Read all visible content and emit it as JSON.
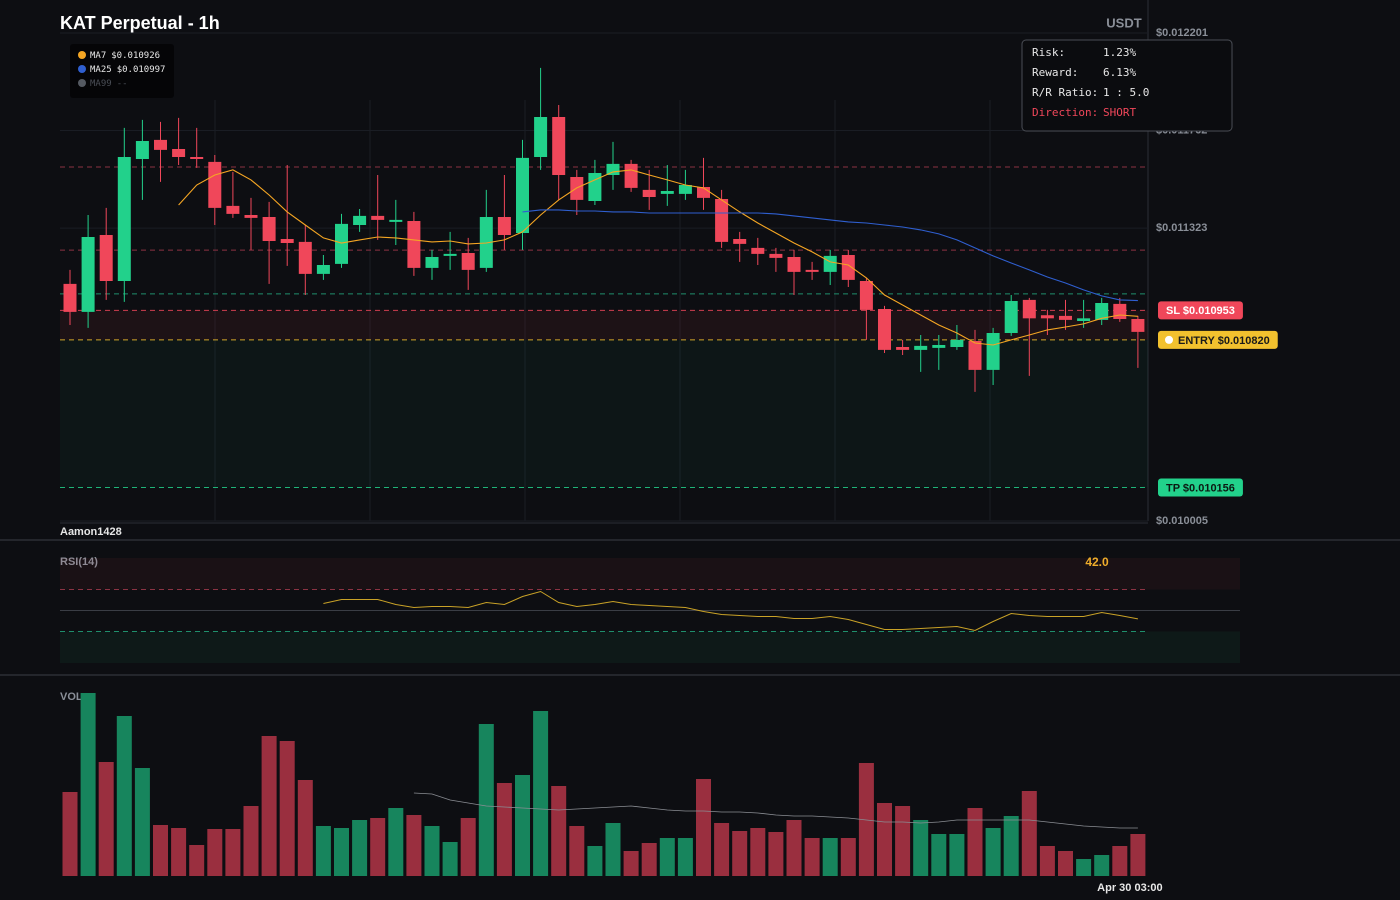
{
  "chart_data": {
    "type": "candlestick",
    "title": "KAT Perpetual - 1h",
    "currency": "USDT",
    "ylim": [
      0.010005,
      0.012201
    ],
    "yticks": [
      {
        "value": 0.012201,
        "label": "$0.012201"
      },
      {
        "value": 0.011762,
        "label": "$0.011762"
      },
      {
        "value": 0.011323,
        "label": "$0.011323"
      },
      {
        "value": 0.010005,
        "label": "$0.010005"
      }
    ],
    "grid": true,
    "up_color": "#22d18b",
    "down_color": "#f0475a",
    "candles": [
      [
        0.011072,
        0.011135,
        0.010887,
        0.010946
      ],
      [
        0.010946,
        0.011382,
        0.010874,
        0.011283
      ],
      [
        0.011292,
        0.011414,
        0.011,
        0.011085
      ],
      [
        0.011085,
        0.011774,
        0.010991,
        0.011643
      ],
      [
        0.011634,
        0.01181,
        0.01145,
        0.011715
      ],
      [
        0.01172,
        0.011801,
        0.011531,
        0.011675
      ],
      [
        0.011679,
        0.011819,
        0.011607,
        0.011643
      ],
      [
        0.011643,
        0.011774,
        0.011594,
        0.011634
      ],
      [
        0.011621,
        0.011652,
        0.011337,
        0.011414
      ],
      [
        0.011423,
        0.011576,
        0.011369,
        0.011387
      ],
      [
        0.011382,
        0.011459,
        0.011225,
        0.011369
      ],
      [
        0.011373,
        0.011441,
        0.011072,
        0.011265
      ],
      [
        0.011274,
        0.011607,
        0.011153,
        0.011256
      ],
      [
        0.011261,
        0.011337,
        0.011022,
        0.011117
      ],
      [
        0.011117,
        0.011202,
        0.01109,
        0.011157
      ],
      [
        0.011162,
        0.011387,
        0.011144,
        0.011342
      ],
      [
        0.011337,
        0.011409,
        0.011306,
        0.011378
      ],
      [
        0.011378,
        0.011562,
        0.01127,
        0.01136
      ],
      [
        0.011351,
        0.01145,
        0.011247,
        0.01136
      ],
      [
        0.011355,
        0.011396,
        0.011108,
        0.011144
      ],
      [
        0.011144,
        0.011225,
        0.01109,
        0.011193
      ],
      [
        0.011198,
        0.011306,
        0.011135,
        0.011207
      ],
      [
        0.011211,
        0.011279,
        0.011045,
        0.011135
      ],
      [
        0.011144,
        0.011495,
        0.011126,
        0.011373
      ],
      [
        0.011373,
        0.011562,
        0.011225,
        0.011292
      ],
      [
        0.011301,
        0.01172,
        0.011225,
        0.011639
      ],
      [
        0.011643,
        0.012044,
        0.011585,
        0.011823
      ],
      [
        0.011823,
        0.011877,
        0.01145,
        0.011562
      ],
      [
        0.011553,
        0.011585,
        0.011382,
        0.01145
      ],
      [
        0.011445,
        0.01163,
        0.011427,
        0.011571
      ],
      [
        0.011562,
        0.011711,
        0.011495,
        0.011612
      ],
      [
        0.011612,
        0.01163,
        0.011486,
        0.011504
      ],
      [
        0.011495,
        0.011585,
        0.011405,
        0.011463
      ],
      [
        0.011477,
        0.011607,
        0.011423,
        0.01149
      ],
      [
        0.011477,
        0.011585,
        0.01145,
        0.011517
      ],
      [
        0.011508,
        0.011639,
        0.011405,
        0.011459
      ],
      [
        0.011454,
        0.011495,
        0.011234,
        0.011261
      ],
      [
        0.011274,
        0.011306,
        0.011171,
        0.011252
      ],
      [
        0.011234,
        0.011279,
        0.011157,
        0.011207
      ],
      [
        0.011207,
        0.011234,
        0.011126,
        0.011189
      ],
      [
        0.011193,
        0.011225,
        0.011022,
        0.011126
      ],
      [
        0.011135,
        0.011171,
        0.01109,
        0.011126
      ],
      [
        0.011126,
        0.011225,
        0.011067,
        0.011198
      ],
      [
        0.011202,
        0.011225,
        0.011058,
        0.01109
      ],
      [
        0.011085,
        0.011099,
        0.01082,
        0.010955
      ],
      [
        0.010959,
        0.010973,
        0.010761,
        0.010775
      ],
      [
        0.010788,
        0.01082,
        0.010752,
        0.010775
      ],
      [
        0.010775,
        0.010842,
        0.010676,
        0.010793
      ],
      [
        0.010784,
        0.010842,
        0.010685,
        0.010797
      ],
      [
        0.010788,
        0.010887,
        0.010775,
        0.01082
      ],
      [
        0.010815,
        0.010865,
        0.010586,
        0.010685
      ],
      [
        0.010685,
        0.010874,
        0.010617,
        0.010851
      ],
      [
        0.010851,
        0.011022,
        0.010838,
        0.010995
      ],
      [
        0.011,
        0.011009,
        0.010658,
        0.010917
      ],
      [
        0.010931,
        0.010955,
        0.010842,
        0.010917
      ],
      [
        0.010928,
        0.011,
        0.010865,
        0.01091
      ],
      [
        0.010905,
        0.011,
        0.010874,
        0.010917
      ],
      [
        0.01091,
        0.011009,
        0.010887,
        0.010986
      ],
      [
        0.010982,
        0.011009,
        0.010901,
        0.010914
      ],
      [
        0.010914,
        0.010928,
        0.010694,
        0.010856
      ]
    ],
    "ma": [
      {
        "name": "MA7",
        "label": "$0.010926",
        "color": "#f5a623",
        "values": [
          null,
          null,
          null,
          null,
          null,
          null,
          0.011427,
          0.011517,
          0.011562,
          0.011585,
          0.01154,
          0.011472,
          0.011396,
          0.011337,
          0.011279,
          0.011256,
          0.01127,
          0.011283,
          0.011279,
          0.01127,
          0.011261,
          0.011265,
          0.011252,
          0.011256,
          0.01127,
          0.011306,
          0.011382,
          0.01145,
          0.011504,
          0.01154,
          0.011576,
          0.011585,
          0.011562,
          0.01154,
          0.011517,
          0.011504,
          0.01145,
          0.011396,
          0.011346,
          0.011301,
          0.011256,
          0.011216,
          0.011171,
          0.011157,
          0.011099,
          0.011022,
          0.010977,
          0.010932,
          0.010887,
          0.010851,
          0.010806,
          0.010797,
          0.01082,
          0.010842,
          0.010865,
          0.010878,
          0.010892,
          0.010917,
          0.010932,
          0.010926
        ]
      },
      {
        "name": "MA25",
        "label": "$0.010997",
        "color": "#2f5fd0",
        "values": [
          null,
          null,
          null,
          null,
          null,
          null,
          null,
          null,
          null,
          null,
          null,
          null,
          null,
          null,
          null,
          null,
          null,
          null,
          null,
          null,
          null,
          null,
          null,
          null,
          null,
          0.011396,
          0.011405,
          0.011405,
          0.0114,
          0.0114,
          0.011396,
          0.011396,
          0.011391,
          0.011391,
          0.011391,
          0.011391,
          0.011391,
          0.011391,
          0.011391,
          0.011387,
          0.011378,
          0.011369,
          0.01136,
          0.011351,
          0.011346,
          0.011337,
          0.011328,
          0.011315,
          0.011297,
          0.01127,
          0.011234,
          0.011198,
          0.011166,
          0.011135,
          0.011103,
          0.011076,
          0.011045,
          0.011018,
          0.011,
          0.010997
        ]
      },
      {
        "name": "MA99",
        "label": "--",
        "color": "#555a62",
        "values": []
      }
    ],
    "levels": [
      {
        "value": 0.011598,
        "color": "#8c3343"
      },
      {
        "value": 0.011224,
        "color": "#8c3343"
      },
      {
        "value": 0.011027,
        "color": "#1f8f6c"
      }
    ],
    "sl": {
      "value": 0.010953,
      "label": "SL $0.010953",
      "color": "#f0475a"
    },
    "entry": {
      "value": 0.01082,
      "label": "ENTRY $0.010820",
      "color": "#f2c12e"
    },
    "tp": {
      "value": 0.010156,
      "label": "TP $0.010156",
      "color": "#22d18b"
    },
    "watermark": "Aamon1428",
    "xticks": [
      {
        "index": 59,
        "label": "Apr 30 03:00"
      }
    ],
    "risk_panel": [
      {
        "label": "Risk:",
        "value": "1.23%"
      },
      {
        "label": "Reward:",
        "value": "6.13%"
      },
      {
        "label": "R/R Ratio:",
        "value": "1 : 5.0"
      },
      {
        "label": "Direction:",
        "value": "SHORT"
      }
    ],
    "rsi": {
      "title": "RSI(14)",
      "color": "#c9a227",
      "ylim": [
        0,
        100
      ],
      "overbought": 70,
      "oversold": 30,
      "mid": 50,
      "value_label": "42.0",
      "values": [
        null,
        null,
        null,
        null,
        null,
        null,
        null,
        null,
        null,
        null,
        null,
        null,
        null,
        null,
        56.7,
        60.5,
        60.5,
        60.5,
        55.7,
        52.9,
        53.8,
        53.8,
        52.9,
        57.6,
        55.7,
        63.3,
        68.1,
        57.6,
        53.8,
        55.7,
        58.6,
        55.7,
        54.8,
        53.8,
        52.9,
        49.0,
        46.2,
        45.2,
        44.3,
        44.3,
        42.4,
        42.4,
        44.3,
        41.4,
        36.7,
        31.9,
        31.9,
        32.9,
        33.8,
        34.8,
        31.0,
        39.5,
        47.1,
        45.2,
        44.3,
        44.3,
        44.3,
        48.1,
        45.2,
        42.0
      ]
    },
    "volume": {
      "title": "VOL",
      "ylim": [
        0,
        190
      ],
      "up_color": "#17855d",
      "down_color": "#9a2f3f",
      "ma_color": "#8a8d93",
      "values": [
        84,
        183,
        114,
        160,
        108,
        51,
        48,
        31,
        47,
        47,
        70,
        140,
        135,
        96,
        50,
        48,
        56,
        58,
        68,
        61,
        50,
        34,
        58,
        152,
        93,
        101,
        165,
        90,
        50,
        30,
        53,
        25,
        33,
        38,
        38,
        97,
        53,
        45,
        48,
        44,
        56,
        38,
        38,
        38,
        113,
        73,
        70,
        56,
        42,
        42,
        68,
        48,
        60,
        85,
        30,
        25,
        17,
        21,
        30,
        42
      ],
      "ma_values": [
        null,
        null,
        null,
        null,
        null,
        null,
        null,
        null,
        null,
        null,
        null,
        null,
        null,
        null,
        null,
        null,
        null,
        null,
        null,
        83,
        82,
        76,
        73,
        70,
        69,
        68,
        67,
        66,
        67,
        68,
        69,
        70,
        68,
        66,
        65,
        65,
        64,
        64,
        63,
        61,
        60,
        60,
        59,
        58,
        56,
        54,
        54,
        53,
        54,
        56,
        56,
        56,
        56,
        56,
        54,
        52,
        50,
        49,
        48,
        48
      ]
    }
  }
}
